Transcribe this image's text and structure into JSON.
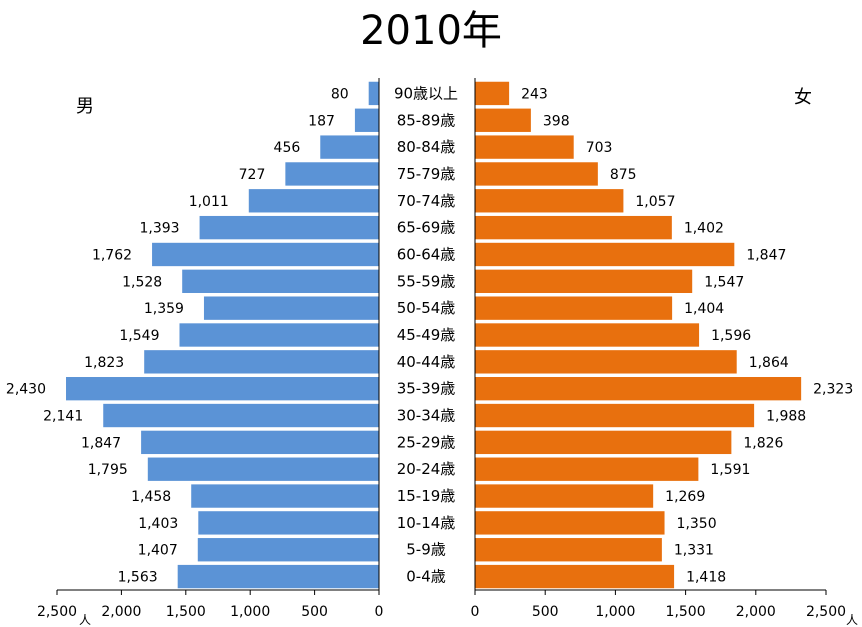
{
  "chart_data": {
    "type": "bar",
    "title": "2010年",
    "categories": [
      "90歳以上",
      "85-89歳",
      "80-84歳",
      "75-79歳",
      "70-74歳",
      "65-69歳",
      "60-64歳",
      "55-59歳",
      "50-54歳",
      "45-49歳",
      "40-44歳",
      "35-39歳",
      "30-34歳",
      "25-29歳",
      "20-24歳",
      "15-19歳",
      "10-14歳",
      "5-9歳",
      "0-4歳"
    ],
    "series": [
      {
        "name": "男",
        "color": "#5b93d6",
        "values": [
          80,
          187,
          456,
          727,
          1011,
          1393,
          1762,
          1528,
          1359,
          1549,
          1823,
          2430,
          2141,
          1847,
          1795,
          1458,
          1403,
          1407,
          1563
        ],
        "labels": [
          "80",
          "187",
          "456",
          "727",
          "1,011",
          "1,393",
          "1,762",
          "1,528",
          "1,359",
          "1,549",
          "1,823",
          "2,430",
          "2,141",
          "1,847",
          "1,795",
          "1,458",
          "1,403",
          "1,407",
          "1,563"
        ]
      },
      {
        "name": "女",
        "color": "#e8700e",
        "values": [
          243,
          398,
          703,
          875,
          1057,
          1402,
          1847,
          1547,
          1404,
          1596,
          1864,
          2323,
          1988,
          1826,
          1591,
          1269,
          1350,
          1331,
          1418
        ],
        "labels": [
          "243",
          "398",
          "703",
          "875",
          "1,057",
          "1,402",
          "1,847",
          "1,547",
          "1,404",
          "1,596",
          "1,864",
          "2,323",
          "1,988",
          "1,826",
          "1,591",
          "1,269",
          "1,350",
          "1,331",
          "1,418"
        ]
      }
    ],
    "xlim": [
      0,
      2500
    ],
    "left_ticks": [
      "2,500",
      "2,000",
      "1,500",
      "1,000",
      "500",
      "0"
    ],
    "right_ticks": [
      "0",
      "500",
      "1,000",
      "1,500",
      "2,000",
      "2,500"
    ],
    "tick_values": [
      2500,
      2000,
      1500,
      1000,
      500,
      0
    ],
    "right_tick_values": [
      0,
      500,
      1000,
      1500,
      2000,
      2500
    ],
    "unit": "人"
  }
}
